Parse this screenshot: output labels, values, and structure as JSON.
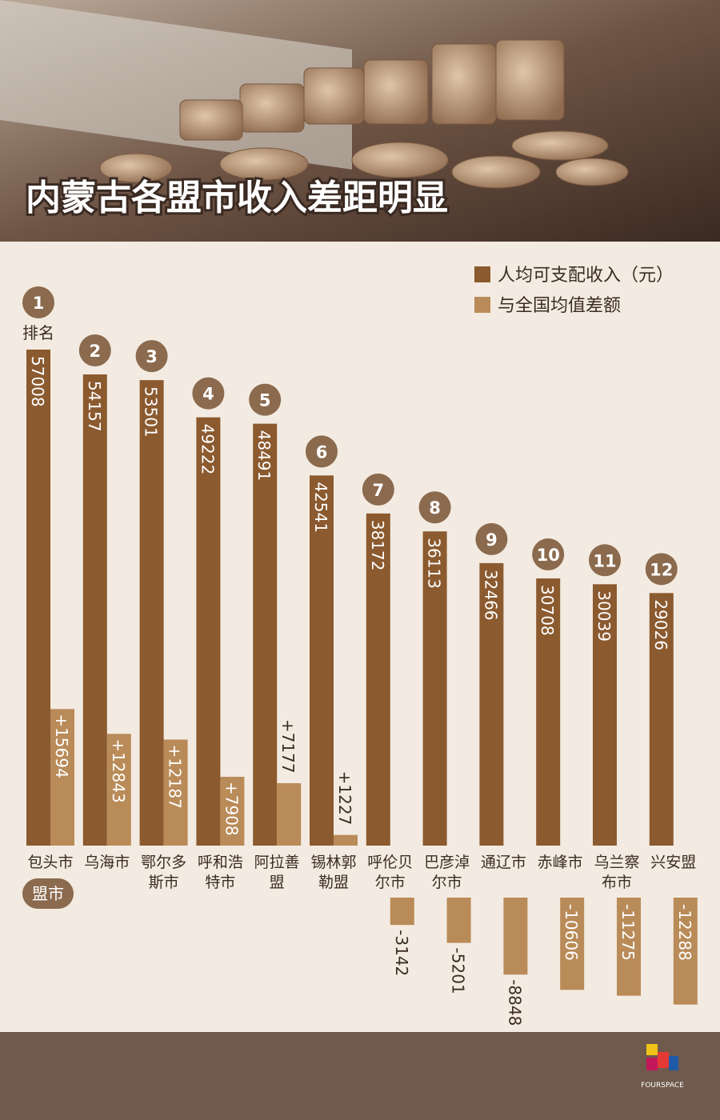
{
  "chart_data": {
    "type": "bar",
    "title": "内蒙古各盟市收入差距明显",
    "rank_label": "排名",
    "category_label": "盟市",
    "categories": [
      "包头市",
      "乌海市",
      "鄂尔多斯市",
      "呼和浩特市",
      "阿拉善盟",
      "锡林郭勒盟",
      "呼伦贝尔市",
      "巴彦淖尔市",
      "通辽市",
      "赤峰市",
      "乌兰察布市",
      "兴安盟"
    ],
    "ranks": [
      1,
      2,
      3,
      4,
      5,
      6,
      7,
      8,
      9,
      10,
      11,
      12
    ],
    "series": [
      {
        "name": "人均可支配收入（元）",
        "color": "#8b5a2f",
        "values": [
          57008,
          54157,
          53501,
          49222,
          48491,
          42541,
          38172,
          36113,
          32466,
          30708,
          30039,
          29026
        ]
      },
      {
        "name": "与全国均值差额",
        "color": "#b98b58",
        "values": [
          15694,
          12843,
          12187,
          7908,
          7177,
          1227,
          -3142,
          -5201,
          -8848,
          -10606,
          -11275,
          -12288
        ],
        "value_labels": [
          "+15694",
          "+12843",
          "+12187",
          "+7908",
          "+7177",
          "+1227",
          "-3142",
          "-5201",
          "-8848",
          "-10606",
          "-11275",
          "-12288"
        ]
      }
    ],
    "logo": "FOURSPACE"
  }
}
